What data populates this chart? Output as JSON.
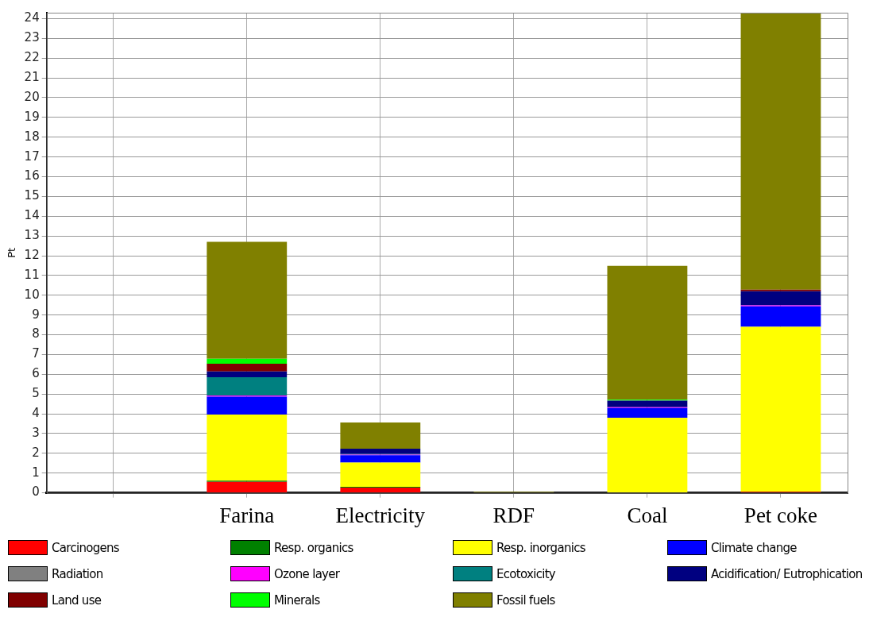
{
  "chart_data": {
    "type": "bar",
    "stacked": true,
    "ylabel": "Pt",
    "categories": [
      null,
      "Farina",
      "Electricity",
      "RDF",
      "Coal",
      "Pet coke"
    ],
    "series": [
      {
        "name": "Carcinogens",
        "color": "#ff0000",
        "values": [
          0,
          0.56,
          0.27,
          0,
          0,
          0.05
        ]
      },
      {
        "name": "Resp. organics",
        "color": "#008000",
        "values": [
          0,
          0.06,
          0.04,
          0,
          0,
          0
        ]
      },
      {
        "name": "Resp. inorganics",
        "color": "#ffff00",
        "values": [
          0,
          3.34,
          1.22,
          0,
          3.8,
          8.35
        ]
      },
      {
        "name": "Climate change",
        "color": "#0000ff",
        "values": [
          0,
          0.91,
          0.37,
          0,
          0.49,
          1.04
        ]
      },
      {
        "name": "Radiation",
        "color": "#808080",
        "values": [
          0,
          0,
          0,
          0,
          0,
          0
        ]
      },
      {
        "name": "Ozone layer",
        "color": "#ff00ff",
        "values": [
          0,
          0.06,
          0.03,
          0,
          0.04,
          0.05
        ]
      },
      {
        "name": "Ecotoxicity",
        "color": "#008080",
        "values": [
          0,
          0.92,
          0.03,
          0,
          0,
          0
        ]
      },
      {
        "name": "Acidification/ Eutrophication",
        "color": "#000080",
        "values": [
          0,
          0.29,
          0.27,
          0,
          0.34,
          0.71
        ]
      },
      {
        "name": "Land use",
        "color": "#800000",
        "values": [
          0,
          0.4,
          0,
          0,
          0,
          0.08
        ]
      },
      {
        "name": "Minerals",
        "color": "#00ff00",
        "values": [
          0,
          0.25,
          0,
          0,
          0.05,
          0
        ]
      },
      {
        "name": "Fossil fuels",
        "color": "#808000",
        "values": [
          0,
          5.91,
          1.33,
          0.05,
          6.77,
          14.02
        ]
      }
    ],
    "ylim": [
      0,
      24.3
    ],
    "yticks": [
      0,
      1,
      2,
      3,
      4,
      5,
      6,
      7,
      8,
      9,
      10,
      11,
      12,
      13,
      14,
      15,
      16,
      17,
      18,
      19,
      20,
      21,
      22,
      23,
      24
    ],
    "grid": true,
    "legend": "bottom"
  }
}
